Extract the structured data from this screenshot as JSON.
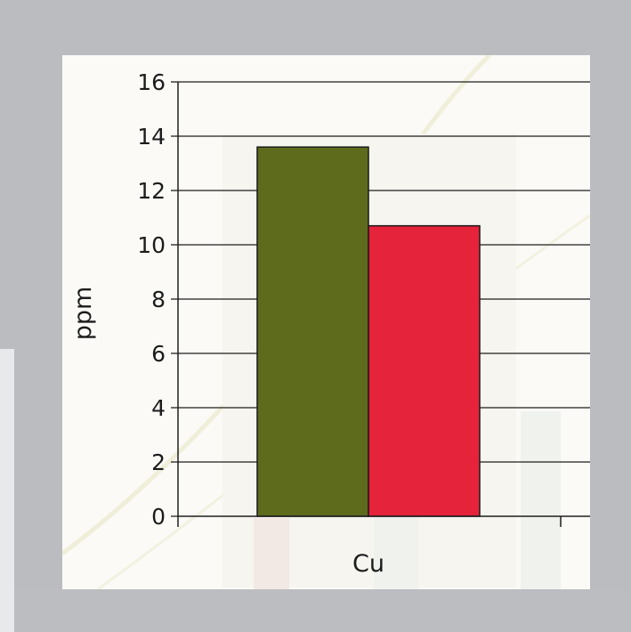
{
  "chart_data": {
    "type": "bar",
    "categories": [
      "Cu"
    ],
    "series": [
      {
        "values": [
          13.6
        ],
        "color": "#5e6b1d"
      },
      {
        "values": [
          10.7
        ],
        "color": "#e5233b"
      }
    ],
    "ylabel": "ppm",
    "ylim": [
      0,
      16
    ],
    "yticks": [
      0,
      2,
      4,
      6,
      8,
      10,
      12,
      14,
      16
    ],
    "grid": true,
    "legend": "none"
  },
  "colors": {
    "frame": "#bbbcc0",
    "panel": "#fbfaf6",
    "grid": "#1f1f1f"
  }
}
